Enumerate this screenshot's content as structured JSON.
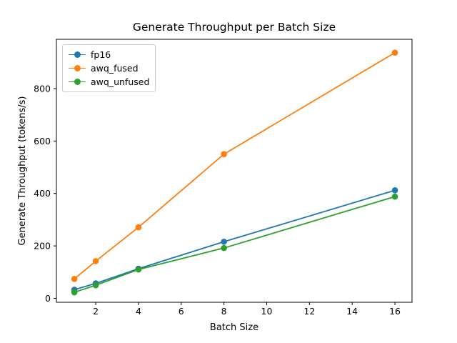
{
  "figure": {
    "background": "#ffffff",
    "title": "Generate Throughput per Batch Size",
    "xlabel": "Batch Size",
    "ylabel": "Generate Throughput (tokens/s)"
  },
  "chart_data": {
    "type": "line",
    "title": "Generate Throughput per Batch Size",
    "xlabel": "Batch Size",
    "ylabel": "Generate Throughput (tokens/s)",
    "x": [
      1,
      2,
      4,
      8,
      16
    ],
    "series": [
      {
        "name": "fp16",
        "color": "#1f77b4",
        "values": [
          33,
          57,
          113,
          216,
          412
        ]
      },
      {
        "name": "awq_fused",
        "color": "#ff7f0e",
        "values": [
          74,
          142,
          271,
          550,
          937
        ]
      },
      {
        "name": "awq_unfused",
        "color": "#2ca02c",
        "values": [
          23,
          50,
          110,
          192,
          388
        ]
      }
    ],
    "xticks": [
      2,
      4,
      6,
      8,
      10,
      12,
      14,
      16
    ],
    "yticks": [
      0,
      200,
      400,
      600,
      800
    ],
    "xlim": [
      0.16,
      16.8
    ],
    "ylim": [
      -15,
      988
    ],
    "grid": false,
    "marker": "o",
    "legend_position": "upper left",
    "axis_color": "#000000"
  }
}
